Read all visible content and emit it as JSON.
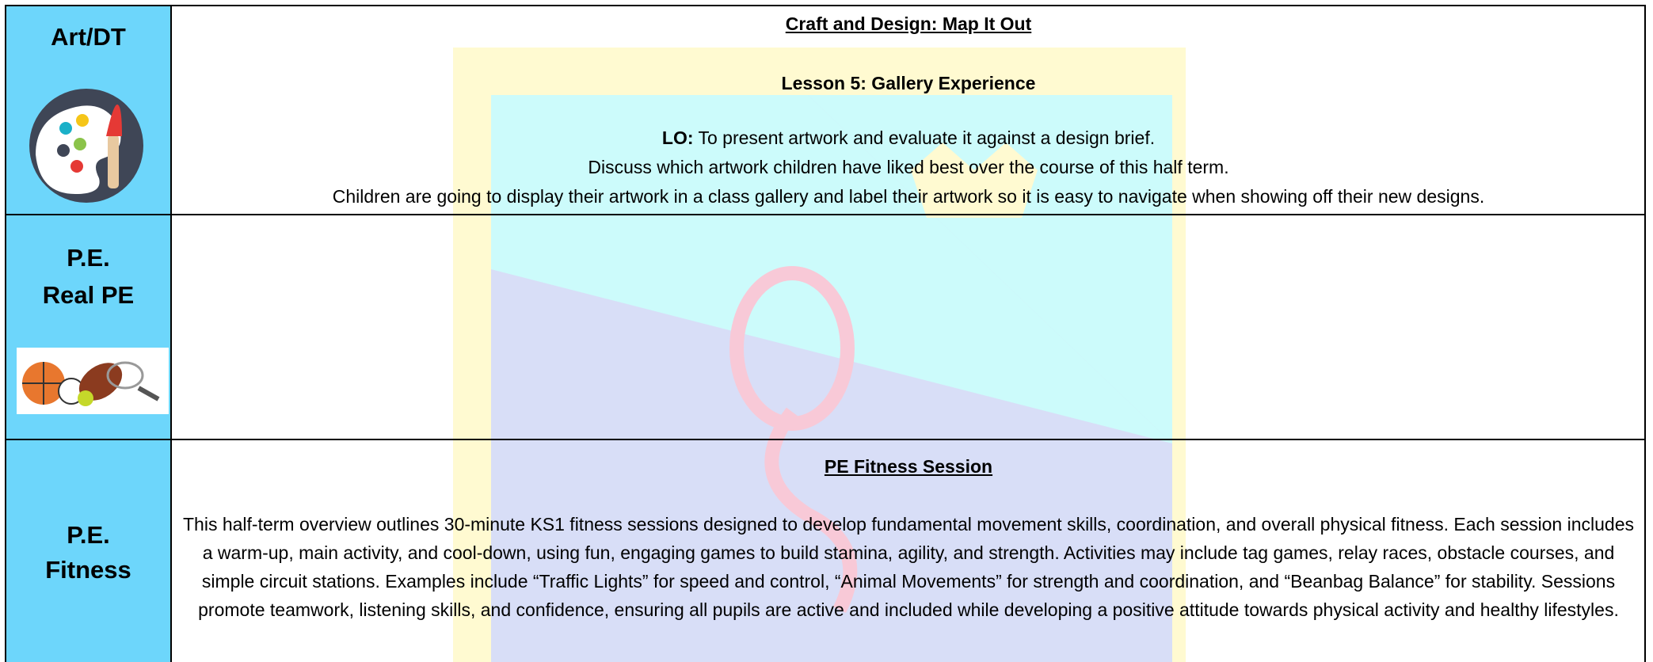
{
  "rows": [
    {
      "subject": [
        "Art/DT"
      ],
      "title": "Craft and Design: Map It Out",
      "lesson": "Lesson 5: Gallery Experience",
      "lo_label": "LO:",
      "lo_text": "To present artwork and evaluate it against a design brief.",
      "lines": [
        "Discuss which artwork children have liked best over the course of this half term.",
        "Children are going to display their artwork in a class gallery and label their artwork so it is easy to navigate when showing off their new designs."
      ]
    },
    {
      "subject": [
        "P.E.",
        "Real PE"
      ]
    },
    {
      "subject": [
        "P.E.",
        "Fitness"
      ],
      "title": "PE Fitness Session",
      "paragraph": "This half-term overview outlines 30-minute KS1 fitness sessions designed to develop fundamental movement skills, coordination, and overall physical fitness. Each session includes a warm-up, main activity, and cool-down, using fun, engaging games to build stamina, agility, and strength. Activities may include tag games, relay races, obstacle courses, and simple circuit stations. Examples include “Traffic Lights” for speed and control, “Animal Movements” for strength and coordination, and “Beanbag Balance” for stability. Sessions promote teamwork, listening skills, and confidence, ensuring all pupils are active and included while developing a positive attitude towards physical activity and healthy lifestyles."
    }
  ]
}
